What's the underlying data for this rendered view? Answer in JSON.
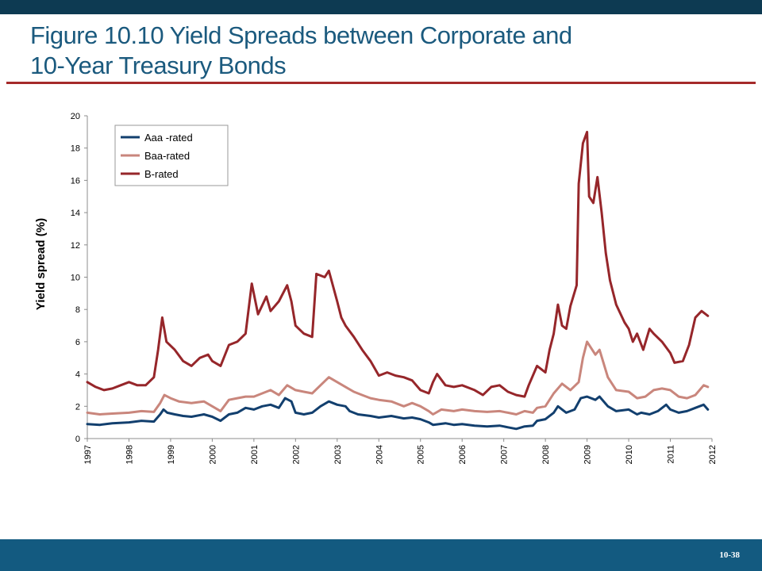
{
  "slide": {
    "title_line1": "Figure 10.10 Yield Spreads between Corporate and",
    "title_line2": "10-Year Treasury Bonds",
    "page_number": "10-38",
    "colors": {
      "top_bar": "#0d3a52",
      "title": "#1b5a7e",
      "rule": "#a52a2a",
      "bottom_bar": "#135a80"
    }
  },
  "chart_data": {
    "type": "line",
    "ylabel": "Yield spread (%)",
    "xlabel": "",
    "xlim": [
      1997,
      2012
    ],
    "ylim": [
      0,
      20
    ],
    "yticks": [
      0,
      2,
      4,
      6,
      8,
      10,
      12,
      14,
      16,
      18,
      20
    ],
    "xticks": [
      "1997",
      "1998",
      "1999",
      "2000",
      "2001",
      "2002",
      "2003",
      "2004",
      "2005",
      "2006",
      "2007",
      "2008",
      "2009",
      "2010",
      "2011",
      "2012"
    ],
    "grid": false,
    "legend_position": "top-left",
    "series": [
      {
        "name": "Aaa -rated",
        "color": "#123f6e",
        "points": [
          [
            1997.0,
            0.9
          ],
          [
            1997.3,
            0.85
          ],
          [
            1997.6,
            0.95
          ],
          [
            1998.0,
            1.0
          ],
          [
            1998.3,
            1.1
          ],
          [
            1998.6,
            1.05
          ],
          [
            1998.75,
            1.5
          ],
          [
            1998.83,
            1.8
          ],
          [
            1998.92,
            1.6
          ],
          [
            1999.1,
            1.5
          ],
          [
            1999.3,
            1.4
          ],
          [
            1999.5,
            1.35
          ],
          [
            1999.8,
            1.5
          ],
          [
            2000.0,
            1.35
          ],
          [
            2000.2,
            1.1
          ],
          [
            2000.4,
            1.5
          ],
          [
            2000.6,
            1.6
          ],
          [
            2000.8,
            1.9
          ],
          [
            2001.0,
            1.8
          ],
          [
            2001.2,
            2.0
          ],
          [
            2001.4,
            2.1
          ],
          [
            2001.6,
            1.9
          ],
          [
            2001.75,
            2.5
          ],
          [
            2001.9,
            2.3
          ],
          [
            2002.0,
            1.6
          ],
          [
            2002.2,
            1.5
          ],
          [
            2002.4,
            1.6
          ],
          [
            2002.6,
            2.0
          ],
          [
            2002.8,
            2.3
          ],
          [
            2003.0,
            2.1
          ],
          [
            2003.2,
            2.0
          ],
          [
            2003.3,
            1.7
          ],
          [
            2003.5,
            1.5
          ],
          [
            2003.8,
            1.4
          ],
          [
            2004.0,
            1.3
          ],
          [
            2004.3,
            1.4
          ],
          [
            2004.6,
            1.25
          ],
          [
            2004.8,
            1.3
          ],
          [
            2005.0,
            1.2
          ],
          [
            2005.2,
            1.0
          ],
          [
            2005.3,
            0.85
          ],
          [
            2005.6,
            0.95
          ],
          [
            2005.8,
            0.85
          ],
          [
            2006.0,
            0.9
          ],
          [
            2006.3,
            0.8
          ],
          [
            2006.6,
            0.75
          ],
          [
            2006.9,
            0.8
          ],
          [
            2007.1,
            0.7
          ],
          [
            2007.3,
            0.6
          ],
          [
            2007.5,
            0.75
          ],
          [
            2007.7,
            0.8
          ],
          [
            2007.8,
            1.1
          ],
          [
            2008.0,
            1.2
          ],
          [
            2008.2,
            1.6
          ],
          [
            2008.3,
            2.0
          ],
          [
            2008.5,
            1.6
          ],
          [
            2008.7,
            1.8
          ],
          [
            2008.85,
            2.5
          ],
          [
            2009.0,
            2.6
          ],
          [
            2009.2,
            2.4
          ],
          [
            2009.3,
            2.6
          ],
          [
            2009.5,
            2.0
          ],
          [
            2009.7,
            1.7
          ],
          [
            2010.0,
            1.8
          ],
          [
            2010.2,
            1.5
          ],
          [
            2010.3,
            1.6
          ],
          [
            2010.5,
            1.5
          ],
          [
            2010.7,
            1.7
          ],
          [
            2010.9,
            2.1
          ],
          [
            2011.0,
            1.8
          ],
          [
            2011.2,
            1.6
          ],
          [
            2011.4,
            1.7
          ],
          [
            2011.6,
            1.9
          ],
          [
            2011.8,
            2.1
          ],
          [
            2011.9,
            1.8
          ]
        ]
      },
      {
        "name": "Baa-rated",
        "color": "#c9867c",
        "points": [
          [
            1997.0,
            1.6
          ],
          [
            1997.3,
            1.5
          ],
          [
            1997.6,
            1.55
          ],
          [
            1998.0,
            1.6
          ],
          [
            1998.3,
            1.7
          ],
          [
            1998.6,
            1.65
          ],
          [
            1998.75,
            2.2
          ],
          [
            1998.85,
            2.7
          ],
          [
            1999.0,
            2.5
          ],
          [
            1999.2,
            2.3
          ],
          [
            1999.5,
            2.2
          ],
          [
            1999.8,
            2.3
          ],
          [
            2000.0,
            2.0
          ],
          [
            2000.2,
            1.7
          ],
          [
            2000.4,
            2.4
          ],
          [
            2000.6,
            2.5
          ],
          [
            2000.8,
            2.6
          ],
          [
            2001.0,
            2.6
          ],
          [
            2001.2,
            2.8
          ],
          [
            2001.4,
            3.0
          ],
          [
            2001.6,
            2.7
          ],
          [
            2001.8,
            3.3
          ],
          [
            2002.0,
            3.0
          ],
          [
            2002.2,
            2.9
          ],
          [
            2002.4,
            2.8
          ],
          [
            2002.6,
            3.3
          ],
          [
            2002.8,
            3.8
          ],
          [
            2003.0,
            3.5
          ],
          [
            2003.2,
            3.2
          ],
          [
            2003.4,
            2.9
          ],
          [
            2003.6,
            2.7
          ],
          [
            2003.8,
            2.5
          ],
          [
            2004.0,
            2.4
          ],
          [
            2004.3,
            2.3
          ],
          [
            2004.6,
            2.0
          ],
          [
            2004.8,
            2.2
          ],
          [
            2005.0,
            2.0
          ],
          [
            2005.2,
            1.7
          ],
          [
            2005.3,
            1.5
          ],
          [
            2005.5,
            1.8
          ],
          [
            2005.8,
            1.7
          ],
          [
            2006.0,
            1.8
          ],
          [
            2006.3,
            1.7
          ],
          [
            2006.6,
            1.65
          ],
          [
            2006.9,
            1.7
          ],
          [
            2007.1,
            1.6
          ],
          [
            2007.3,
            1.5
          ],
          [
            2007.5,
            1.7
          ],
          [
            2007.7,
            1.6
          ],
          [
            2007.8,
            1.9
          ],
          [
            2008.0,
            2.0
          ],
          [
            2008.2,
            2.8
          ],
          [
            2008.4,
            3.4
          ],
          [
            2008.6,
            3.0
          ],
          [
            2008.8,
            3.5
          ],
          [
            2008.9,
            5.0
          ],
          [
            2009.0,
            6.0
          ],
          [
            2009.2,
            5.2
          ],
          [
            2009.3,
            5.5
          ],
          [
            2009.5,
            3.8
          ],
          [
            2009.7,
            3.0
          ],
          [
            2010.0,
            2.9
          ],
          [
            2010.2,
            2.5
          ],
          [
            2010.4,
            2.6
          ],
          [
            2010.6,
            3.0
          ],
          [
            2010.8,
            3.1
          ],
          [
            2011.0,
            3.0
          ],
          [
            2011.2,
            2.6
          ],
          [
            2011.4,
            2.5
          ],
          [
            2011.6,
            2.7
          ],
          [
            2011.8,
            3.3
          ],
          [
            2011.9,
            3.2
          ]
        ]
      },
      {
        "name": "B-rated",
        "color": "#96262a",
        "points": [
          [
            1997.0,
            3.5
          ],
          [
            1997.2,
            3.2
          ],
          [
            1997.4,
            3.0
          ],
          [
            1997.6,
            3.1
          ],
          [
            1997.8,
            3.3
          ],
          [
            1998.0,
            3.5
          ],
          [
            1998.2,
            3.3
          ],
          [
            1998.4,
            3.3
          ],
          [
            1998.6,
            3.8
          ],
          [
            1998.7,
            5.5
          ],
          [
            1998.8,
            7.5
          ],
          [
            1998.9,
            6.0
          ],
          [
            1999.1,
            5.5
          ],
          [
            1999.3,
            4.8
          ],
          [
            1999.5,
            4.5
          ],
          [
            1999.7,
            5.0
          ],
          [
            1999.9,
            5.2
          ],
          [
            2000.0,
            4.8
          ],
          [
            2000.2,
            4.5
          ],
          [
            2000.4,
            5.8
          ],
          [
            2000.6,
            6.0
          ],
          [
            2000.8,
            6.5
          ],
          [
            2000.95,
            9.6
          ],
          [
            2001.1,
            7.7
          ],
          [
            2001.3,
            8.8
          ],
          [
            2001.4,
            7.9
          ],
          [
            2001.6,
            8.5
          ],
          [
            2001.8,
            9.5
          ],
          [
            2001.9,
            8.5
          ],
          [
            2002.0,
            7.0
          ],
          [
            2002.2,
            6.5
          ],
          [
            2002.4,
            6.3
          ],
          [
            2002.5,
            10.2
          ],
          [
            2002.7,
            10.0
          ],
          [
            2002.8,
            10.4
          ],
          [
            2003.0,
            8.5
          ],
          [
            2003.1,
            7.5
          ],
          [
            2003.2,
            7.0
          ],
          [
            2003.4,
            6.3
          ],
          [
            2003.6,
            5.5
          ],
          [
            2003.8,
            4.8
          ],
          [
            2004.0,
            3.9
          ],
          [
            2004.2,
            4.1
          ],
          [
            2004.4,
            3.9
          ],
          [
            2004.6,
            3.8
          ],
          [
            2004.8,
            3.6
          ],
          [
            2005.0,
            3.0
          ],
          [
            2005.2,
            2.8
          ],
          [
            2005.3,
            3.5
          ],
          [
            2005.4,
            4.0
          ],
          [
            2005.6,
            3.3
          ],
          [
            2005.8,
            3.2
          ],
          [
            2006.0,
            3.3
          ],
          [
            2006.3,
            3.0
          ],
          [
            2006.5,
            2.7
          ],
          [
            2006.7,
            3.2
          ],
          [
            2006.9,
            3.3
          ],
          [
            2007.1,
            2.9
          ],
          [
            2007.3,
            2.7
          ],
          [
            2007.5,
            2.6
          ],
          [
            2007.6,
            3.3
          ],
          [
            2007.8,
            4.5
          ],
          [
            2008.0,
            4.1
          ],
          [
            2008.1,
            5.5
          ],
          [
            2008.2,
            6.5
          ],
          [
            2008.3,
            8.3
          ],
          [
            2008.4,
            7.0
          ],
          [
            2008.5,
            6.8
          ],
          [
            2008.6,
            8.2
          ],
          [
            2008.75,
            9.5
          ],
          [
            2008.8,
            15.8
          ],
          [
            2008.9,
            18.3
          ],
          [
            2009.0,
            19.0
          ],
          [
            2009.05,
            15.0
          ],
          [
            2009.15,
            14.6
          ],
          [
            2009.25,
            16.2
          ],
          [
            2009.35,
            14.0
          ],
          [
            2009.45,
            11.5
          ],
          [
            2009.55,
            9.8
          ],
          [
            2009.7,
            8.3
          ],
          [
            2009.9,
            7.2
          ],
          [
            2010.0,
            6.8
          ],
          [
            2010.1,
            6.0
          ],
          [
            2010.2,
            6.5
          ],
          [
            2010.35,
            5.5
          ],
          [
            2010.5,
            6.8
          ],
          [
            2010.6,
            6.5
          ],
          [
            2010.8,
            6.0
          ],
          [
            2011.0,
            5.3
          ],
          [
            2011.1,
            4.7
          ],
          [
            2011.3,
            4.8
          ],
          [
            2011.45,
            5.8
          ],
          [
            2011.6,
            7.5
          ],
          [
            2011.75,
            7.9
          ],
          [
            2011.9,
            7.6
          ]
        ]
      }
    ]
  }
}
